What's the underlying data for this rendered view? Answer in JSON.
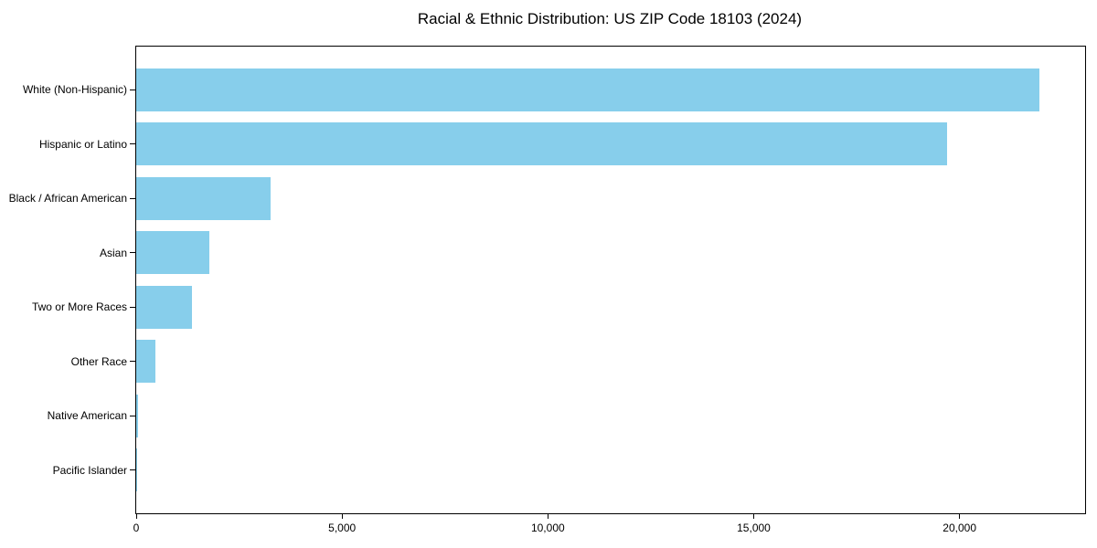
{
  "chart_data": {
    "type": "bar",
    "orientation": "horizontal",
    "title": "Racial & Ethnic Distribution: US ZIP Code 18103 (2024)",
    "categories": [
      "White (Non-Hispanic)",
      "Hispanic or Latino",
      "Black / African American",
      "Asian",
      "Two or More Races",
      "Other Race",
      "Native American",
      "Pacific Islander"
    ],
    "values": [
      21950,
      19700,
      3270,
      1770,
      1360,
      470,
      40,
      15
    ],
    "xlabel": "",
    "ylabel": "",
    "xlim": [
      0,
      23050
    ],
    "x_ticks": [
      0,
      5000,
      10000,
      15000,
      20000
    ],
    "x_tick_labels": [
      "0",
      "5,000",
      "10,000",
      "15,000",
      "20,000"
    ],
    "bar_color": "#87CEEB",
    "background_color": "#FFFFFF",
    "spine_color": "#000000",
    "grid": false,
    "legend": false
  }
}
